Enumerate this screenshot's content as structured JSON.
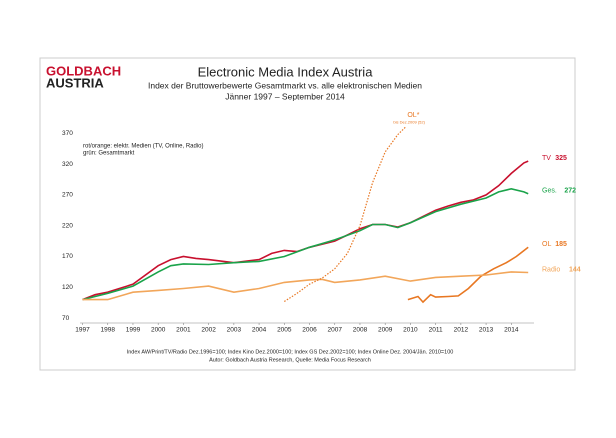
{
  "logo": {
    "line1": "GOLDBACH",
    "line2": "AUSTRIA"
  },
  "chart_data": {
    "type": "line",
    "title": "Electronic Media Index Austria",
    "subtitle": [
      "Index der Bruttowerbewerte Gesamtmarkt vs. alle elektronischen Medien",
      "Jänner 1997 –  September 2014"
    ],
    "notes": [
      "rot/orange: elektr. Medien (TV, Online, Radio)",
      "grün: Gesamtmarkt"
    ],
    "xlim": [
      1996.9,
      2014.9
    ],
    "xticks": [
      1997,
      1998,
      1999,
      2000,
      2001,
      2002,
      2003,
      2004,
      2005,
      2006,
      2007,
      2008,
      2009,
      2010,
      2011,
      2012,
      2013,
      2014
    ],
    "ylim": [
      62,
      382
    ],
    "yticks": [
      70,
      120,
      170,
      220,
      270,
      320,
      370
    ],
    "grid": false,
    "series": [
      {
        "name": "TV",
        "end_value": 325,
        "color": "#c8102e",
        "style": "solid",
        "x": [
          1997,
          1997.5,
          1998,
          1999,
          2000,
          2000.5,
          2001,
          2001.5,
          2002,
          2003,
          2004,
          2004.5,
          2005,
          2005.5,
          2006,
          2007,
          2007.5,
          2008,
          2008.5,
          2009,
          2009.5,
          2010,
          2010.5,
          2011,
          2011.5,
          2012,
          2012.5,
          2013,
          2013.5,
          2014,
          2014.5,
          2014.67
        ],
        "values": [
          100,
          108,
          112,
          125,
          155,
          165,
          170,
          167,
          165,
          160,
          165,
          175,
          180,
          178,
          185,
          195,
          205,
          215,
          222,
          222,
          218,
          225,
          235,
          245,
          252,
          258,
          262,
          270,
          285,
          305,
          322,
          325
        ]
      },
      {
        "name": "Ges.",
        "end_value": 272,
        "color": "#1aa34a",
        "style": "solid",
        "x": [
          1997,
          1998,
          1999,
          2000,
          2000.5,
          2001,
          2002,
          2003,
          2004,
          2005,
          2006,
          2007,
          2008,
          2008.5,
          2009,
          2009.5,
          2010,
          2011,
          2012,
          2012.5,
          2013,
          2013.5,
          2014,
          2014.5,
          2014.67
        ],
        "values": [
          100,
          110,
          122,
          145,
          155,
          158,
          157,
          160,
          162,
          170,
          185,
          197,
          212,
          222,
          222,
          217,
          225,
          243,
          255,
          260,
          265,
          275,
          280,
          275,
          272
        ]
      },
      {
        "name": "OL",
        "end_value": 185,
        "color": "#e87722",
        "style": "solid",
        "x": [
          2009.9,
          2010.3,
          2010.5,
          2010.8,
          2011,
          2011.5,
          2011.9,
          2012.3,
          2012.8,
          2013.3,
          2013.8,
          2014.2,
          2014.67
        ],
        "values": [
          100,
          105,
          96,
          108,
          104,
          105,
          106,
          118,
          138,
          150,
          160,
          170,
          185
        ]
      },
      {
        "name": "Radio",
        "end_value": 144,
        "color": "#f2a65a",
        "style": "solid",
        "x": [
          1997,
          1998,
          1999,
          2000,
          2001,
          2002,
          2003,
          2004,
          2005,
          2006,
          2006.5,
          2007,
          2008,
          2009,
          2010,
          2011,
          2012,
          2013,
          2014,
          2014.67
        ],
        "values": [
          100,
          100,
          112,
          115,
          118,
          122,
          112,
          118,
          128,
          132,
          133,
          128,
          132,
          138,
          130,
          136,
          138,
          140,
          145,
          144
        ]
      },
      {
        "name": "OL*",
        "annotation": "bis Dez.2009 (52)",
        "color": "#e87722",
        "style": "dotted",
        "x": [
          2005,
          2005.5,
          2006,
          2006.5,
          2007,
          2007.5,
          2008,
          2008.5,
          2009,
          2009.5,
          2009.8
        ],
        "values": [
          97,
          110,
          125,
          135,
          150,
          175,
          220,
          290,
          340,
          368,
          380
        ]
      }
    ],
    "footnotes": [
      "Index AW/Print/TV/Radio Dez.1996=100; Index Kino Dez.2000=100; Index GS Dez.2002=100; Index Online Dez. 2004/Jän. 2010=100",
      "Autor: Goldbach Austria Research, Quelle: Media Focus Research"
    ]
  }
}
